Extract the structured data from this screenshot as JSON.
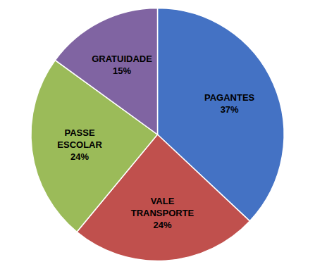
{
  "chart_data": {
    "type": "pie",
    "categories": [
      "PAGANTES",
      "VALE\nTRANSPORTE",
      "PASSE\nESCOLAR",
      "GRATUIDADE"
    ],
    "values": [
      37,
      24,
      24,
      15
    ],
    "value_labels": [
      "37%",
      "24%",
      "24%",
      "15%"
    ],
    "data_labels": true,
    "colors": [
      "#4472C4",
      "#C0504D",
      "#9BBB59",
      "#8064A2"
    ]
  }
}
